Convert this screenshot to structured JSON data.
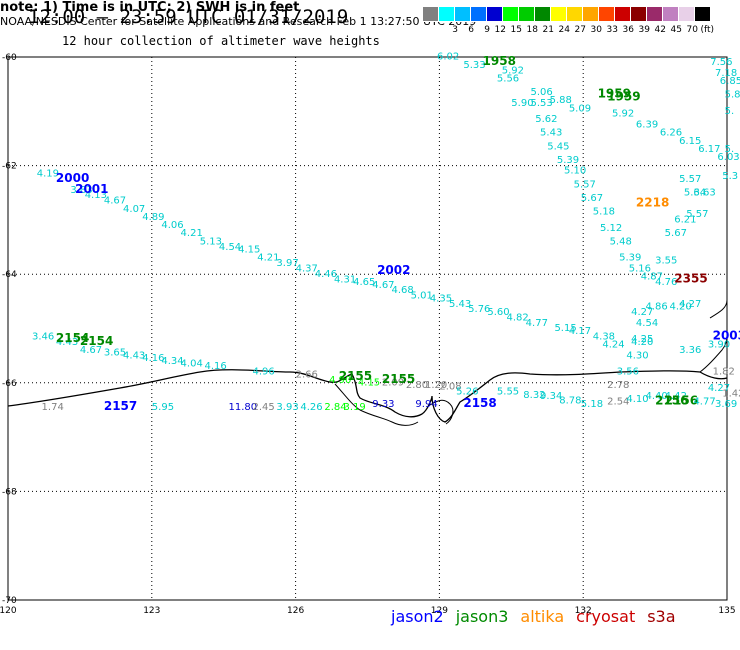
{
  "title": "12:00 – 23:59 UTC 01/31/2019",
  "subtitle": "12 hour collection of altimeter wave heights",
  "note": "note: 1) Time is in UTC; 2) SWH is in feet",
  "credit": "NOAA/NESDIS Center for Satellite Applications and Research   Feb  1 13:27:50 UTC 2019",
  "satellites": [
    {
      "name": "jason2",
      "color": "#0000ff"
    },
    {
      "name": "jason3",
      "color": "#008a00"
    },
    {
      "name": "altika",
      "color": "#ff8c00"
    },
    {
      "name": "cryosat",
      "color": "#cc0000"
    },
    {
      "name": "s3a",
      "color": "#a00000"
    }
  ],
  "colorbar": {
    "unit": "(ft)",
    "bins": [
      {
        "color": "#808080",
        "label": ""
      },
      {
        "color": "#00ffff",
        "label": "3"
      },
      {
        "color": "#00bfff",
        "label": "6"
      },
      {
        "color": "#0070ff",
        "label": "9"
      },
      {
        "color": "#0000d0",
        "label": "12"
      },
      {
        "color": "#00ff00",
        "label": "15"
      },
      {
        "color": "#00cc00",
        "label": "18"
      },
      {
        "color": "#008800",
        "label": "21"
      },
      {
        "color": "#ffff00",
        "label": "24"
      },
      {
        "color": "#ffd700",
        "label": "27"
      },
      {
        "color": "#ffa500",
        "label": "30"
      },
      {
        "color": "#ff4500",
        "label": "33"
      },
      {
        "color": "#cc0000",
        "label": "36"
      },
      {
        "color": "#8b0000",
        "label": "39"
      },
      {
        "color": "#9a2a6a",
        "label": "42"
      },
      {
        "color": "#c080c0",
        "label": "45"
      },
      {
        "color": "#e8d0e8",
        "label": "70"
      },
      {
        "color": "#000000",
        "label": "(ft)"
      }
    ]
  },
  "chart_data": {
    "type": "scatter",
    "title": "12:00 – 23:59 UTC 01/31/2019",
    "xlabel": "",
    "ylabel": "",
    "xlim": [
      120,
      135
    ],
    "ylim": [
      -70,
      -60
    ],
    "xticks": [
      {
        "value": 120,
        "label": "120"
      },
      {
        "value": 123,
        "label": "123"
      },
      {
        "value": 126,
        "label": "126"
      },
      {
        "value": 129,
        "label": "129"
      },
      {
        "value": 132,
        "label": "132"
      },
      {
        "value": 135,
        "label": "135"
      }
    ],
    "yticks": [
      {
        "value": -60,
        "label": "-60"
      },
      {
        "value": -62,
        "label": "-62"
      },
      {
        "value": -64,
        "label": "-64"
      },
      {
        "value": -66,
        "label": "-66"
      },
      {
        "value": -68,
        "label": "-68"
      },
      {
        "value": -70,
        "label": "-70"
      }
    ],
    "grid": true,
    "points": [
      {
        "x": 120.6,
        "y": -62.2,
        "text": "4.19",
        "color": "#00cccc"
      },
      {
        "x": 121.3,
        "y": -62.5,
        "text": "3.83",
        "color": "#00cccc"
      },
      {
        "x": 121.6,
        "y": -62.6,
        "text": "4.13",
        "color": "#00cccc"
      },
      {
        "x": 122.0,
        "y": -62.7,
        "text": "4.67",
        "color": "#00cccc"
      },
      {
        "x": 122.4,
        "y": -62.85,
        "text": "4.07",
        "color": "#00cccc"
      },
      {
        "x": 122.8,
        "y": -63.0,
        "text": "4.89",
        "color": "#00cccc"
      },
      {
        "x": 123.2,
        "y": -63.15,
        "text": "4.06",
        "color": "#00cccc"
      },
      {
        "x": 123.6,
        "y": -63.3,
        "text": "4.21",
        "color": "#00cccc"
      },
      {
        "x": 124.0,
        "y": -63.45,
        "text": "5.13",
        "color": "#00cccc"
      },
      {
        "x": 124.4,
        "y": -63.55,
        "text": "4.54",
        "color": "#00cccc"
      },
      {
        "x": 124.8,
        "y": -63.6,
        "text": "4.15",
        "color": "#00cccc"
      },
      {
        "x": 125.2,
        "y": -63.75,
        "text": "4.21",
        "color": "#00cccc"
      },
      {
        "x": 125.6,
        "y": -63.85,
        "text": "3.97",
        "color": "#00cccc"
      },
      {
        "x": 126.0,
        "y": -63.95,
        "text": "4.37",
        "color": "#00cccc"
      },
      {
        "x": 126.4,
        "y": -64.05,
        "text": "4.46",
        "color": "#00cccc"
      },
      {
        "x": 126.8,
        "y": -64.15,
        "text": "4.31",
        "color": "#00cccc"
      },
      {
        "x": 127.2,
        "y": -64.2,
        "text": "4.65",
        "color": "#00cccc"
      },
      {
        "x": 127.6,
        "y": -64.25,
        "text": "4.67",
        "color": "#00cccc"
      },
      {
        "x": 128.0,
        "y": -64.35,
        "text": "4.68",
        "color": "#00cccc"
      },
      {
        "x": 128.4,
        "y": -64.45,
        "text": "5.01",
        "color": "#00cccc"
      },
      {
        "x": 128.8,
        "y": -64.5,
        "text": "4.35",
        "color": "#00cccc"
      },
      {
        "x": 129.2,
        "y": -64.6,
        "text": "5.43",
        "color": "#00cccc"
      },
      {
        "x": 129.6,
        "y": -64.7,
        "text": "5.76",
        "color": "#00cccc"
      },
      {
        "x": 130.0,
        "y": -64.75,
        "text": "5.60",
        "color": "#00cccc"
      },
      {
        "x": 130.4,
        "y": -64.85,
        "text": "4.82",
        "color": "#00cccc"
      },
      {
        "x": 130.8,
        "y": -64.95,
        "text": "4.77",
        "color": "#00cccc"
      },
      {
        "x": 131.4,
        "y": -65.05,
        "text": "5.15",
        "color": "#00cccc"
      },
      {
        "x": 131.7,
        "y": -65.1,
        "text": "4.17",
        "color": "#00cccc"
      },
      {
        "x": 132.2,
        "y": -65.2,
        "text": "4.38",
        "color": "#00cccc"
      },
      {
        "x": 132.4,
        "y": -65.35,
        "text": "4.24",
        "color": "#00cccc"
      },
      {
        "x": 133.0,
        "y": -65.3,
        "text": "4.20",
        "color": "#00cccc"
      },
      {
        "x": 134.0,
        "y": -65.45,
        "text": "3.36",
        "color": "#00cccc"
      },
      {
        "x": 120.5,
        "y": -65.2,
        "text": "3.46",
        "color": "#00cccc"
      },
      {
        "x": 121.0,
        "y": -65.3,
        "text": "4.43",
        "color": "#00cccc"
      },
      {
        "x": 121.5,
        "y": -65.45,
        "text": "4.67",
        "color": "#00cccc"
      },
      {
        "x": 122.0,
        "y": -65.5,
        "text": "3.65",
        "color": "#00cccc"
      },
      {
        "x": 122.4,
        "y": -65.55,
        "text": "4.43",
        "color": "#00cccc"
      },
      {
        "x": 122.8,
        "y": -65.6,
        "text": "4.16",
        "color": "#00cccc"
      },
      {
        "x": 123.2,
        "y": -65.65,
        "text": "4.34",
        "color": "#00cccc"
      },
      {
        "x": 123.6,
        "y": -65.7,
        "text": "4.04",
        "color": "#00cccc"
      },
      {
        "x": 124.1,
        "y": -65.75,
        "text": "4.16",
        "color": "#00cccc"
      },
      {
        "x": 125.1,
        "y": -65.85,
        "text": "4.96",
        "color": "#00cccc"
      },
      {
        "x": 126.0,
        "y": -65.9,
        "text": "2.66",
        "color": "#808080"
      },
      {
        "x": 126.7,
        "y": -66.0,
        "text": "4.90",
        "color": "#00ff00"
      },
      {
        "x": 127.3,
        "y": -66.05,
        "text": "4.15",
        "color": "#00ff00"
      },
      {
        "x": 127.8,
        "y": -66.05,
        "text": "2.09",
        "color": "#808080"
      },
      {
        "x": 128.3,
        "y": -66.1,
        "text": "2.80",
        "color": "#808080"
      },
      {
        "x": 128.7,
        "y": -66.1,
        "text": "1.20",
        "color": "#808080"
      },
      {
        "x": 129.0,
        "y": -66.12,
        "text": "2.08",
        "color": "#808080"
      },
      {
        "x": 129.35,
        "y": -66.22,
        "text": "5.26",
        "color": "#00cccc"
      },
      {
        "x": 130.2,
        "y": -66.22,
        "text": "5.55",
        "color": "#00cccc"
      },
      {
        "x": 130.75,
        "y": -66.28,
        "text": "8.32",
        "color": "#00cccc"
      },
      {
        "x": 131.1,
        "y": -66.3,
        "text": "9.34",
        "color": "#00cccc"
      },
      {
        "x": 131.5,
        "y": -66.38,
        "text": "8.78",
        "color": "#00cccc"
      },
      {
        "x": 131.95,
        "y": -66.45,
        "text": "5.18",
        "color": "#00cccc"
      },
      {
        "x": 120.7,
        "y": -66.5,
        "text": "1.74",
        "color": "#808080"
      },
      {
        "x": 122.0,
        "y": -66.5,
        "text": "2157",
        "color": "#0000ff",
        "bold": true
      },
      {
        "x": 123.0,
        "y": -66.5,
        "text": "5.95",
        "color": "#00cccc"
      },
      {
        "x": 124.6,
        "y": -66.5,
        "text": "11.80",
        "color": "#0000d0"
      },
      {
        "x": 125.1,
        "y": -66.5,
        "text": "2.45",
        "color": "#808080"
      },
      {
        "x": 125.6,
        "y": -66.5,
        "text": "3.93",
        "color": "#00cccc"
      },
      {
        "x": 126.1,
        "y": -66.5,
        "text": "4.26",
        "color": "#00cccc"
      },
      {
        "x": 126.6,
        "y": -66.5,
        "text": "2.84",
        "color": "#00ff00"
      },
      {
        "x": 127.0,
        "y": -66.5,
        "text": "3.19",
        "color": "#00ff00"
      },
      {
        "x": 127.6,
        "y": -66.45,
        "text": "9.33",
        "color": "#0000d0"
      },
      {
        "x": 128.5,
        "y": -66.45,
        "text": "9.94",
        "color": "#0000d0"
      },
      {
        "x": 129.5,
        "y": -66.45,
        "text": "2158",
        "color": "#0000ff",
        "bold": true
      },
      {
        "x": 121.0,
        "y": -62.3,
        "text": "2000",
        "color": "#0000ff",
        "bold": true
      },
      {
        "x": 121.4,
        "y": -62.5,
        "text": "2001",
        "color": "#0000ff",
        "bold": true
      },
      {
        "x": 127.7,
        "y": -64.0,
        "text": "2002",
        "color": "#0000ff",
        "bold": true
      },
      {
        "x": 121.0,
        "y": -65.25,
        "text": "2154",
        "color": "#008800",
        "bold": true
      },
      {
        "x": 121.5,
        "y": -65.3,
        "text": "2154",
        "color": "#008800",
        "bold": true
      },
      {
        "x": 126.9,
        "y": -65.95,
        "text": "2155",
        "color": "#008800",
        "bold": true
      },
      {
        "x": 127.8,
        "y": -66.0,
        "text": "2155",
        "color": "#008800",
        "bold": true
      },
      {
        "x": 128.95,
        "y": -60.05,
        "text": "6.02",
        "color": "#00cccc"
      },
      {
        "x": 129.5,
        "y": -60.2,
        "text": "5.33",
        "color": "#00cccc"
      },
      {
        "x": 129.9,
        "y": -60.15,
        "text": "1958",
        "color": "#008800",
        "bold": true
      },
      {
        "x": 130.3,
        "y": -60.3,
        "text": "5.92",
        "color": "#00cccc"
      },
      {
        "x": 130.2,
        "y": -60.45,
        "text": "5.56",
        "color": "#00cccc"
      },
      {
        "x": 130.5,
        "y": -60.9,
        "text": "5.90",
        "color": "#00cccc"
      },
      {
        "x": 130.9,
        "y": -60.7,
        "text": "5.06",
        "color": "#00cccc"
      },
      {
        "x": 131.3,
        "y": -60.85,
        "text": "5.88",
        "color": "#00cccc"
      },
      {
        "x": 131.7,
        "y": -61.0,
        "text": "5.09",
        "color": "#00cccc"
      },
      {
        "x": 132.3,
        "y": -60.75,
        "text": "1959",
        "color": "#008800",
        "bold": true
      },
      {
        "x": 132.5,
        "y": -60.8,
        "text": "1959",
        "color": "#008800",
        "bold": true
      },
      {
        "x": 132.6,
        "y": -61.1,
        "text": "5.92",
        "color": "#00cccc"
      },
      {
        "x": 133.1,
        "y": -61.3,
        "text": "6.39",
        "color": "#00cccc"
      },
      {
        "x": 133.6,
        "y": -61.45,
        "text": "6.26",
        "color": "#00cccc"
      },
      {
        "x": 134.0,
        "y": -61.6,
        "text": "6.15",
        "color": "#00cccc"
      },
      {
        "x": 134.4,
        "y": -61.75,
        "text": "6.17",
        "color": "#00cccc"
      },
      {
        "x": 134.8,
        "y": -61.9,
        "text": "6.03",
        "color": "#00cccc"
      },
      {
        "x": 130.9,
        "y": -60.9,
        "text": "5.53",
        "color": "#00cccc"
      },
      {
        "x": 131.0,
        "y": -61.2,
        "text": "5.62",
        "color": "#00cccc"
      },
      {
        "x": 131.1,
        "y": -61.45,
        "text": "5.43",
        "color": "#00cccc"
      },
      {
        "x": 131.25,
        "y": -61.7,
        "text": "5.45",
        "color": "#00cccc"
      },
      {
        "x": 131.45,
        "y": -61.95,
        "text": "5.39",
        "color": "#00cccc"
      },
      {
        "x": 131.6,
        "y": -62.15,
        "text": "5.10",
        "color": "#00cccc"
      },
      {
        "x": 131.8,
        "y": -62.4,
        "text": "5.57",
        "color": "#00cccc"
      },
      {
        "x": 131.95,
        "y": -62.65,
        "text": "5.67",
        "color": "#00cccc"
      },
      {
        "x": 132.2,
        "y": -62.9,
        "text": "5.18",
        "color": "#00cccc"
      },
      {
        "x": 132.35,
        "y": -63.2,
        "text": "5.12",
        "color": "#00cccc"
      },
      {
        "x": 132.55,
        "y": -63.45,
        "text": "5.48",
        "color": "#00cccc"
      },
      {
        "x": 132.75,
        "y": -63.75,
        "text": "5.39",
        "color": "#00cccc"
      },
      {
        "x": 132.95,
        "y": -63.95,
        "text": "5.16",
        "color": "#00cccc"
      },
      {
        "x": 133.2,
        "y": -64.1,
        "text": "4.87",
        "color": "#00cccc"
      },
      {
        "x": 133.3,
        "y": -64.65,
        "text": "4.86",
        "color": "#00cccc"
      },
      {
        "x": 133.1,
        "y": -64.95,
        "text": "4.54",
        "color": "#00cccc"
      },
      {
        "x": 133.0,
        "y": -65.25,
        "text": "4.25",
        "color": "#00cccc"
      },
      {
        "x": 132.9,
        "y": -65.55,
        "text": "4.30",
        "color": "#00cccc"
      },
      {
        "x": 132.7,
        "y": -65.85,
        "text": "3.56",
        "color": "#00cccc"
      },
      {
        "x": 132.5,
        "y": -66.1,
        "text": "2.78",
        "color": "#808080"
      },
      {
        "x": 133.0,
        "y": -64.75,
        "text": "4.27",
        "color": "#00cccc"
      },
      {
        "x": 133.5,
        "y": -64.2,
        "text": "4.76",
        "color": "#00cccc"
      },
      {
        "x": 133.1,
        "y": -62.75,
        "text": "2218",
        "color": "#ff8c00",
        "bold": true
      },
      {
        "x": 133.5,
        "y": -63.8,
        "text": "3.55",
        "color": "#00cccc"
      },
      {
        "x": 133.7,
        "y": -63.3,
        "text": "5.67",
        "color": "#00cccc"
      },
      {
        "x": 133.9,
        "y": -63.05,
        "text": "6.21",
        "color": "#00cccc"
      },
      {
        "x": 134.0,
        "y": -64.6,
        "text": "4.27",
        "color": "#00cccc"
      },
      {
        "x": 134.3,
        "y": -62.55,
        "text": "3.63",
        "color": "#00cccc"
      },
      {
        "x": 134.0,
        "y": -62.3,
        "text": "5.57",
        "color": "#00cccc"
      },
      {
        "x": 134.15,
        "y": -62.95,
        "text": "5.57",
        "color": "#00cccc"
      },
      {
        "x": 134.1,
        "y": -62.55,
        "text": "5.64",
        "color": "#00cccc"
      },
      {
        "x": 133.8,
        "y": -64.65,
        "text": "4.20",
        "color": "#00cccc"
      },
      {
        "x": 133.9,
        "y": -64.15,
        "text": "2355",
        "color": "#8b0000",
        "bold": true
      },
      {
        "x": 134.7,
        "y": -65.2,
        "text": "2003",
        "color": "#0000ff",
        "bold": true
      },
      {
        "x": 134.6,
        "y": -65.35,
        "text": "3.90",
        "color": "#00cccc"
      },
      {
        "x": 134.7,
        "y": -65.85,
        "text": "1.82",
        "color": "#808080"
      },
      {
        "x": 134.6,
        "y": -66.15,
        "text": "4.27",
        "color": "#00cccc"
      },
      {
        "x": 134.9,
        "y": -66.25,
        "text": "1.42",
        "color": "#808080"
      },
      {
        "x": 134.65,
        "y": -60.15,
        "text": "7.56",
        "color": "#00cccc"
      },
      {
        "x": 134.75,
        "y": -60.35,
        "text": "7.18",
        "color": "#00cccc"
      },
      {
        "x": 134.85,
        "y": -60.5,
        "text": "6.85",
        "color": "#00cccc"
      },
      {
        "x": 134.95,
        "y": -60.75,
        "text": "5.8",
        "color": "#00cccc"
      },
      {
        "x": 134.95,
        "y": -61.05,
        "text": "5.",
        "color": "#00cccc"
      },
      {
        "x": 134.95,
        "y": -61.75,
        "text": "5.",
        "color": "#00cccc"
      },
      {
        "x": 134.9,
        "y": -62.25,
        "text": "5.3",
        "color": "#00cccc"
      },
      {
        "x": 132.5,
        "y": -66.4,
        "text": "2.54",
        "color": "#808080"
      },
      {
        "x": 132.9,
        "y": -66.35,
        "text": "4.10",
        "color": "#00cccc"
      },
      {
        "x": 133.3,
        "y": -66.3,
        "text": "4.40",
        "color": "#00cccc"
      },
      {
        "x": 133.7,
        "y": -66.3,
        "text": "4.42",
        "color": "#00cccc"
      },
      {
        "x": 133.5,
        "y": -66.4,
        "text": "2156",
        "color": "#008800",
        "bold": true
      },
      {
        "x": 133.7,
        "y": -66.4,
        "text": "2156",
        "color": "#008800",
        "bold": true
      },
      {
        "x": 134.3,
        "y": -66.4,
        "text": "4.77",
        "color": "#00cccc"
      },
      {
        "x": 134.75,
        "y": -66.45,
        "text": "3.69",
        "color": "#00cccc"
      }
    ]
  }
}
